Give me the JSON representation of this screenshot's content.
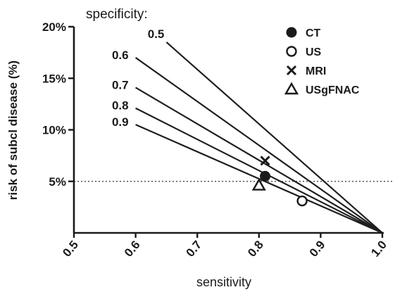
{
  "chart_data": {
    "type": "line",
    "title": "",
    "annotation": "specificity:",
    "xlabel": "sensitivity",
    "ylabel": "risk of subcl disease (%)",
    "xlim": [
      0.5,
      1.0
    ],
    "ylim": [
      0,
      20
    ],
    "x_ticks": [
      "0.5",
      "0.6",
      "0.7",
      "0.8",
      "0.9",
      "1.0"
    ],
    "y_ticks": [
      {
        "value": 5,
        "label": "5%"
      },
      {
        "value": 10,
        "label": "10%"
      },
      {
        "value": 15,
        "label": "15%"
      },
      {
        "value": 20,
        "label": "20%"
      }
    ],
    "reference_line": {
      "y": 5,
      "style": "dotted"
    },
    "series": [
      {
        "name": "0.5",
        "x_start": 0.65,
        "y_start": 18.5,
        "x_end": 1.0,
        "y_end": 0
      },
      {
        "name": "0.6",
        "x_start": 0.6,
        "y_start": 17.0,
        "x_end": 1.0,
        "y_end": 0
      },
      {
        "name": "0.7",
        "x_start": 0.6,
        "y_start": 14.1,
        "x_end": 1.0,
        "y_end": 0
      },
      {
        "name": "0.8",
        "x_start": 0.6,
        "y_start": 12.1,
        "x_end": 1.0,
        "y_end": 0
      },
      {
        "name": "0.9",
        "x_start": 0.6,
        "y_start": 10.5,
        "x_end": 1.0,
        "y_end": 0
      }
    ],
    "points": [
      {
        "name": "CT",
        "marker": "filled-circle",
        "x": 0.81,
        "y": 5.5
      },
      {
        "name": "US",
        "marker": "open-circle",
        "x": 0.87,
        "y": 3.1
      },
      {
        "name": "MRI",
        "marker": "cross",
        "x": 0.81,
        "y": 7.0
      },
      {
        "name": "USgFNAC",
        "marker": "open-triangle",
        "x": 0.8,
        "y": 4.6
      }
    ]
  }
}
